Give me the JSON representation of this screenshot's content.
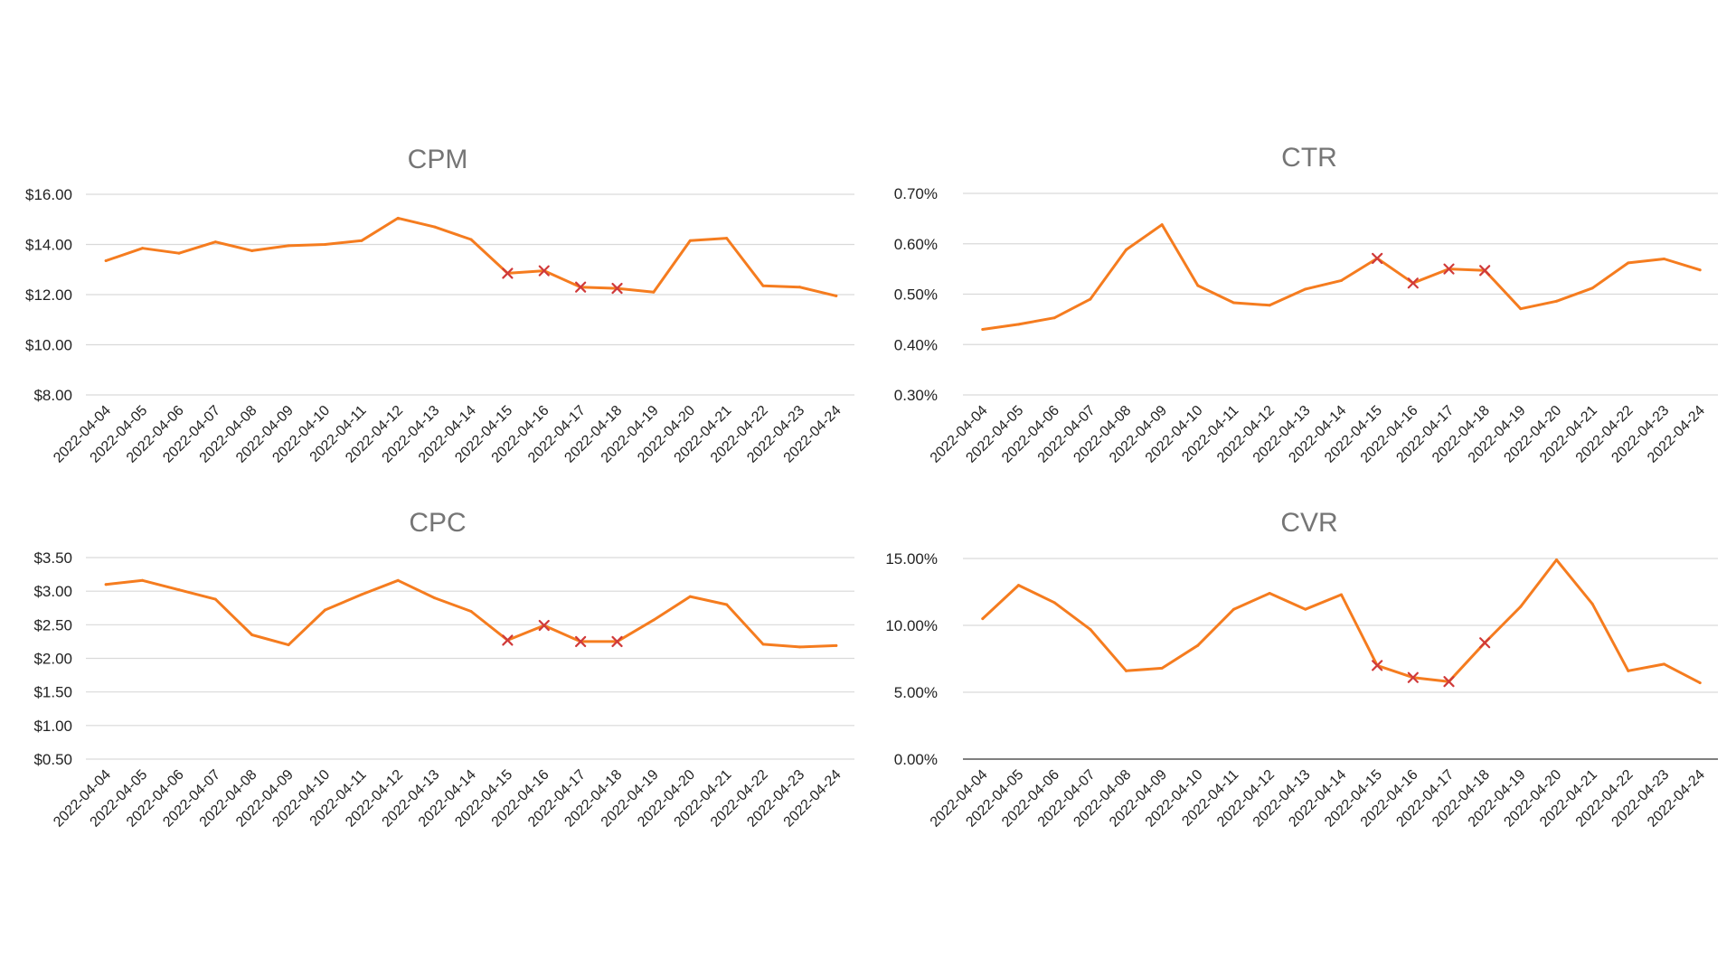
{
  "colors": {
    "series": "#f57c1f",
    "marker": "#d03a3a"
  },
  "chart_data": [
    {
      "type": "line",
      "title": "CPM",
      "categories": [
        "2022-04-04",
        "2022-04-05",
        "2022-04-06",
        "2022-04-07",
        "2022-04-08",
        "2022-04-09",
        "2022-04-10",
        "2022-04-11",
        "2022-04-12",
        "2022-04-13",
        "2022-04-14",
        "2022-04-15",
        "2022-04-16",
        "2022-04-17",
        "2022-04-18",
        "2022-04-19",
        "2022-04-20",
        "2022-04-21",
        "2022-04-22",
        "2022-04-23",
        "2022-04-24"
      ],
      "values": [
        13.35,
        13.85,
        13.65,
        14.1,
        13.75,
        13.95,
        14.0,
        14.15,
        15.05,
        14.7,
        14.2,
        12.85,
        12.95,
        12.3,
        12.25,
        12.1,
        14.15,
        14.25,
        12.35,
        12.3,
        11.95
      ],
      "highlighted_points": [
        11,
        12,
        13,
        14
      ],
      "yticks": [
        8,
        10,
        12,
        14,
        16
      ],
      "ytick_labels": [
        "$8.00",
        "$10.00",
        "$12.00",
        "$14.00",
        "$16.00"
      ],
      "ylim": [
        8,
        16
      ],
      "grid": true,
      "baseline_axis": false
    },
    {
      "type": "line",
      "title": "CTR",
      "categories": [
        "2022-04-04",
        "2022-04-05",
        "2022-04-06",
        "2022-04-07",
        "2022-04-08",
        "2022-04-09",
        "2022-04-10",
        "2022-04-11",
        "2022-04-12",
        "2022-04-13",
        "2022-04-14",
        "2022-04-15",
        "2022-04-16",
        "2022-04-17",
        "2022-04-18",
        "2022-04-19",
        "2022-04-20",
        "2022-04-21",
        "2022-04-22",
        "2022-04-23",
        "2022-04-24"
      ],
      "values": [
        0.43,
        0.44,
        0.453,
        0.49,
        0.588,
        0.638,
        0.517,
        0.483,
        0.478,
        0.51,
        0.527,
        0.571,
        0.522,
        0.55,
        0.547,
        0.471,
        0.486,
        0.512,
        0.562,
        0.57,
        0.548
      ],
      "highlighted_points": [
        11,
        12,
        13,
        14
      ],
      "yticks": [
        0.3,
        0.4,
        0.5,
        0.6,
        0.7
      ],
      "ytick_labels": [
        "0.30%",
        "0.40%",
        "0.50%",
        "0.60%",
        "0.70%"
      ],
      "ylim": [
        0.3,
        0.7
      ],
      "grid": true,
      "baseline_axis": false
    },
    {
      "type": "line",
      "title": "CPC",
      "categories": [
        "2022-04-04",
        "2022-04-05",
        "2022-04-06",
        "2022-04-07",
        "2022-04-08",
        "2022-04-09",
        "2022-04-10",
        "2022-04-11",
        "2022-04-12",
        "2022-04-13",
        "2022-04-14",
        "2022-04-15",
        "2022-04-16",
        "2022-04-17",
        "2022-04-18",
        "2022-04-19",
        "2022-04-20",
        "2022-04-21",
        "2022-04-22",
        "2022-04-23",
        "2022-04-24"
      ],
      "values": [
        3.1,
        3.16,
        3.02,
        2.88,
        2.35,
        2.2,
        2.72,
        2.95,
        3.16,
        2.9,
        2.7,
        2.27,
        2.49,
        2.25,
        2.25,
        2.57,
        2.92,
        2.8,
        2.21,
        2.17,
        2.19
      ],
      "highlighted_points": [
        11,
        12,
        13,
        14
      ],
      "yticks": [
        0.5,
        1.0,
        1.5,
        2.0,
        2.5,
        3.0,
        3.5
      ],
      "ytick_labels": [
        "$0.50",
        "$1.00",
        "$1.50",
        "$2.00",
        "$2.50",
        "$3.00",
        "$3.50"
      ],
      "ylim": [
        0.5,
        3.5
      ],
      "grid": true,
      "baseline_axis": false
    },
    {
      "type": "line",
      "title": "CVR",
      "categories": [
        "2022-04-04",
        "2022-04-05",
        "2022-04-06",
        "2022-04-07",
        "2022-04-08",
        "2022-04-09",
        "2022-04-10",
        "2022-04-11",
        "2022-04-12",
        "2022-04-13",
        "2022-04-14",
        "2022-04-15",
        "2022-04-16",
        "2022-04-17",
        "2022-04-18",
        "2022-04-19",
        "2022-04-20",
        "2022-04-21",
        "2022-04-22",
        "2022-04-23",
        "2022-04-24"
      ],
      "values": [
        10.5,
        13.0,
        11.7,
        9.7,
        6.6,
        6.8,
        8.5,
        11.2,
        12.4,
        11.2,
        12.3,
        7.0,
        6.1,
        5.8,
        8.7,
        11.4,
        14.9,
        11.6,
        6.6,
        7.1,
        5.7
      ],
      "highlighted_points": [
        11,
        12,
        13,
        14
      ],
      "yticks": [
        0,
        5,
        10,
        15
      ],
      "ytick_labels": [
        "0.00%",
        "5.00%",
        "10.00%",
        "15.00%"
      ],
      "ylim": [
        0,
        15
      ],
      "grid": true,
      "baseline_axis": true
    }
  ]
}
